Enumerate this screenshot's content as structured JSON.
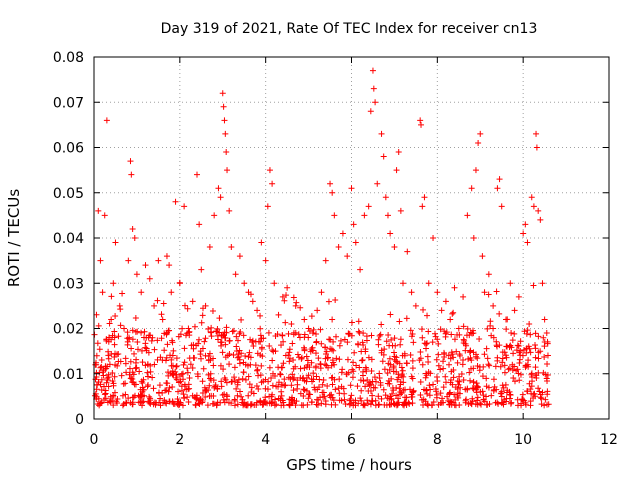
{
  "chart_data": {
    "type": "scatter",
    "title": "Day 319 of 2021, Rate Of TEC Index for receiver cn13",
    "xlabel": "GPS time / hours",
    "ylabel": "ROTI / TECUs",
    "xlim": [
      0,
      12
    ],
    "ylim": [
      0,
      0.08
    ],
    "grid": true,
    "marker": "plus",
    "color": "#ff0000",
    "x_ticks": [
      "0",
      "2",
      "4",
      "6",
      "8",
      "10",
      "12"
    ],
    "y_ticks": [
      "0",
      "0.01",
      "0.02",
      "0.03",
      "0.04",
      "0.05",
      "0.06",
      "0.07",
      "0.08"
    ],
    "series": [
      {
        "name": "ROTI",
        "points": [
          [
            0.05,
            0.012
          ],
          [
            0.1,
            0.046
          ],
          [
            0.15,
            0.035
          ],
          [
            0.2,
            0.028
          ],
          [
            0.25,
            0.045
          ],
          [
            0.3,
            0.066
          ],
          [
            0.35,
            0.018
          ],
          [
            0.4,
            0.022
          ],
          [
            0.45,
            0.03
          ],
          [
            0.5,
            0.039
          ],
          [
            0.6,
            0.025
          ],
          [
            0.7,
            0.02
          ],
          [
            0.8,
            0.035
          ],
          [
            0.85,
            0.057
          ],
          [
            0.87,
            0.054
          ],
          [
            0.9,
            0.042
          ],
          [
            0.95,
            0.04
          ],
          [
            1.0,
            0.032
          ],
          [
            1.1,
            0.028
          ],
          [
            1.2,
            0.034
          ],
          [
            1.3,
            0.031
          ],
          [
            1.4,
            0.025
          ],
          [
            1.5,
            0.035
          ],
          [
            1.6,
            0.022
          ],
          [
            1.7,
            0.036
          ],
          [
            1.75,
            0.034
          ],
          [
            1.8,
            0.028
          ],
          [
            1.9,
            0.048
          ],
          [
            2.0,
            0.03
          ],
          [
            2.1,
            0.047
          ],
          [
            2.2,
            0.02
          ],
          [
            2.3,
            0.026
          ],
          [
            2.4,
            0.054
          ],
          [
            2.45,
            0.043
          ],
          [
            2.5,
            0.033
          ],
          [
            2.6,
            0.025
          ],
          [
            2.7,
            0.038
          ],
          [
            2.8,
            0.045
          ],
          [
            2.9,
            0.051
          ],
          [
            2.95,
            0.049
          ],
          [
            3.0,
            0.072
          ],
          [
            3.02,
            0.069
          ],
          [
            3.04,
            0.066
          ],
          [
            3.06,
            0.063
          ],
          [
            3.08,
            0.059
          ],
          [
            3.1,
            0.055
          ],
          [
            3.15,
            0.046
          ],
          [
            3.2,
            0.038
          ],
          [
            3.3,
            0.032
          ],
          [
            3.4,
            0.036
          ],
          [
            3.5,
            0.03
          ],
          [
            3.6,
            0.028
          ],
          [
            3.7,
            0.026
          ],
          [
            3.8,
            0.024
          ],
          [
            3.9,
            0.039
          ],
          [
            4.0,
            0.035
          ],
          [
            4.05,
            0.047
          ],
          [
            4.1,
            0.055
          ],
          [
            4.15,
            0.052
          ],
          [
            4.2,
            0.03
          ],
          [
            4.3,
            0.023
          ],
          [
            4.4,
            0.027
          ],
          [
            4.5,
            0.029
          ],
          [
            4.6,
            0.021
          ],
          [
            4.7,
            0.025
          ],
          [
            4.8,
            0.018
          ],
          [
            4.9,
            0.022
          ],
          [
            5.0,
            0.02
          ],
          [
            5.1,
            0.019
          ],
          [
            5.2,
            0.024
          ],
          [
            5.3,
            0.028
          ],
          [
            5.4,
            0.035
          ],
          [
            5.5,
            0.052
          ],
          [
            5.55,
            0.05
          ],
          [
            5.6,
            0.045
          ],
          [
            5.7,
            0.038
          ],
          [
            5.8,
            0.041
          ],
          [
            5.9,
            0.036
          ],
          [
            6.0,
            0.051
          ],
          [
            6.05,
            0.043
          ],
          [
            6.1,
            0.039
          ],
          [
            6.2,
            0.033
          ],
          [
            6.3,
            0.045
          ],
          [
            6.4,
            0.047
          ],
          [
            6.45,
            0.068
          ],
          [
            6.5,
            0.077
          ],
          [
            6.52,
            0.073
          ],
          [
            6.55,
            0.07
          ],
          [
            6.6,
            0.052
          ],
          [
            6.7,
            0.063
          ],
          [
            6.75,
            0.058
          ],
          [
            6.8,
            0.049
          ],
          [
            6.85,
            0.045
          ],
          [
            6.9,
            0.041
          ],
          [
            7.0,
            0.038
          ],
          [
            7.05,
            0.055
          ],
          [
            7.1,
            0.059
          ],
          [
            7.15,
            0.046
          ],
          [
            7.2,
            0.03
          ],
          [
            7.3,
            0.037
          ],
          [
            7.4,
            0.028
          ],
          [
            7.5,
            0.025
          ],
          [
            7.6,
            0.066
          ],
          [
            7.62,
            0.065
          ],
          [
            7.65,
            0.047
          ],
          [
            7.7,
            0.049
          ],
          [
            7.8,
            0.03
          ],
          [
            7.9,
            0.04
          ],
          [
            8.0,
            0.028
          ],
          [
            8.1,
            0.024
          ],
          [
            8.2,
            0.026
          ],
          [
            8.3,
            0.022
          ],
          [
            8.4,
            0.029
          ],
          [
            8.5,
            0.02
          ],
          [
            8.6,
            0.027
          ],
          [
            8.7,
            0.045
          ],
          [
            8.8,
            0.051
          ],
          [
            8.85,
            0.04
          ],
          [
            8.9,
            0.055
          ],
          [
            8.95,
            0.061
          ],
          [
            9.0,
            0.063
          ],
          [
            9.05,
            0.036
          ],
          [
            9.1,
            0.028
          ],
          [
            9.2,
            0.032
          ],
          [
            9.3,
            0.025
          ],
          [
            9.4,
            0.051
          ],
          [
            9.45,
            0.053
          ],
          [
            9.5,
            0.047
          ],
          [
            9.6,
            0.022
          ],
          [
            9.7,
            0.03
          ],
          [
            9.8,
            0.024
          ],
          [
            9.9,
            0.027
          ],
          [
            10.0,
            0.041
          ],
          [
            10.05,
            0.043
          ],
          [
            10.1,
            0.039
          ],
          [
            10.2,
            0.049
          ],
          [
            10.25,
            0.047
          ],
          [
            10.3,
            0.063
          ],
          [
            10.32,
            0.06
          ],
          [
            10.35,
            0.046
          ],
          [
            10.4,
            0.044
          ],
          [
            10.45,
            0.03
          ],
          [
            10.5,
            0.022
          ],
          [
            10.55,
            0.019
          ]
        ]
      }
    ],
    "dense_band": {
      "description_values": "ROTI mostly between 0.005 and 0.02 TECUs across 0 to 10.6 hours",
      "x_range": [
        0.0,
        10.6
      ],
      "y_range": [
        0.003,
        0.02
      ],
      "count": 1400
    }
  }
}
